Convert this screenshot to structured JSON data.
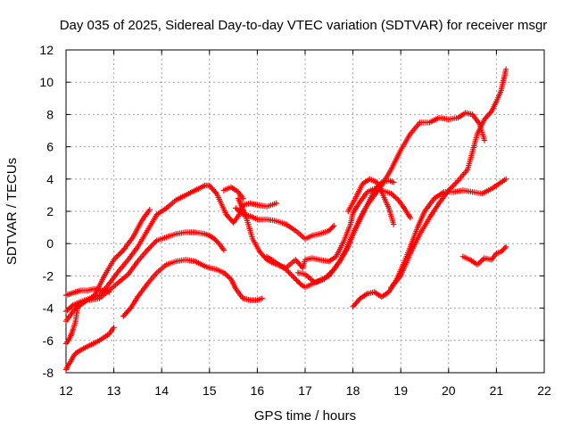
{
  "chart_data": {
    "type": "scatter",
    "title": "Day 035 of 2025, Sidereal Day-to-day VTEC variation (SDTVAR) for receiver msgr",
    "xlabel": "GPS time / hours",
    "ylabel": "SDTVAR / TECUs",
    "xlim": [
      12,
      22
    ],
    "ylim": [
      -8,
      12
    ],
    "x_ticks": [
      "12",
      "13",
      "14",
      "15",
      "16",
      "17",
      "18",
      "19",
      "20",
      "21",
      "22"
    ],
    "y_ticks": [
      "-8",
      "-6",
      "-4",
      "-2",
      "0",
      "2",
      "4",
      "6",
      "8",
      "10",
      "12"
    ],
    "grid": true,
    "marker": "+",
    "color": "#ff0000",
    "series": [
      {
        "x": [
          12.0,
          12.05,
          12.1,
          12.15,
          12.2,
          12.3,
          12.5,
          12.7,
          12.9,
          13.0
        ],
        "y": [
          -7.8,
          -7.5,
          -7.3,
          -7.0,
          -6.8,
          -6.6,
          -6.3,
          -6.0,
          -5.6,
          -5.2
        ]
      },
      {
        "x": [
          12.0,
          12.05,
          12.1,
          12.15,
          12.2,
          12.25
        ],
        "y": [
          -6.2,
          -6.0,
          -5.7,
          -5.3,
          -4.8,
          -3.8
        ]
      },
      {
        "x": [
          12.0,
          12.1,
          12.2,
          12.3,
          12.45,
          12.6,
          12.75,
          12.9
        ],
        "y": [
          -3.2,
          -3.1,
          -3.0,
          -2.9,
          -2.9,
          -2.8,
          -2.9,
          -3.0
        ]
      },
      {
        "x": [
          12.0,
          12.2,
          12.4,
          12.6,
          12.8,
          13.0,
          13.2,
          13.4,
          13.6,
          13.75
        ],
        "y": [
          -4.8,
          -4.0,
          -3.6,
          -3.2,
          -2.0,
          -1.0,
          -0.4,
          0.4,
          1.5,
          2.1
        ]
      },
      {
        "x": [
          12.0,
          12.15,
          12.3,
          12.5,
          12.7,
          12.9,
          13.1,
          13.3,
          13.5,
          13.7,
          13.9,
          14.1,
          14.3,
          14.5,
          14.7,
          14.9,
          15.0,
          15.15,
          15.35,
          15.5,
          15.6,
          15.7,
          15.85,
          16.0,
          16.2,
          16.4
        ],
        "y": [
          -4.2,
          -3.8,
          -3.6,
          -3.4,
          -3.2,
          -2.5,
          -1.7,
          -1.0,
          -0.2,
          0.8,
          1.8,
          2.2,
          2.7,
          3.0,
          3.3,
          3.6,
          3.6,
          3.1,
          1.8,
          1.3,
          1.7,
          2.4,
          2.5,
          2.4,
          2.3,
          2.5
        ]
      },
      {
        "x": [
          12.5,
          12.7,
          12.9,
          13.1,
          13.3,
          13.5,
          13.7,
          13.9,
          14.1,
          14.3,
          14.5,
          14.7,
          14.9,
          15.0,
          15.1,
          15.2,
          15.3
        ],
        "y": [
          -3.5,
          -3.4,
          -2.9,
          -2.4,
          -1.9,
          -1.1,
          -0.4,
          0.2,
          0.4,
          0.6,
          0.7,
          0.7,
          0.6,
          0.5,
          0.3,
          0.0,
          -0.4
        ]
      },
      {
        "x": [
          13.2,
          13.35,
          13.5,
          13.7,
          13.9,
          14.1,
          14.3,
          14.5,
          14.7,
          14.9,
          15.0,
          15.15,
          15.3,
          15.45,
          15.55,
          15.7,
          15.85,
          16.0,
          16.1
        ],
        "y": [
          -4.5,
          -4.0,
          -3.3,
          -2.5,
          -1.8,
          -1.3,
          -1.1,
          -1.0,
          -1.1,
          -1.4,
          -1.5,
          -1.6,
          -1.8,
          -2.2,
          -2.8,
          -3.4,
          -3.5,
          -3.5,
          -3.4
        ]
      },
      {
        "x": [
          15.3,
          15.45,
          15.6,
          15.7
        ],
        "y": [
          3.3,
          3.5,
          3.2,
          2.8
        ]
      },
      {
        "x": [
          15.55,
          15.7,
          15.85,
          16.0,
          16.2,
          16.4,
          16.6,
          16.8,
          17.0,
          17.15,
          17.3,
          17.5,
          17.6
        ],
        "y": [
          2.2,
          1.8,
          1.7,
          1.5,
          1.5,
          1.4,
          1.2,
          0.8,
          0.3,
          0.5,
          0.6,
          0.8,
          1.1
        ]
      },
      {
        "x": [
          15.6,
          15.75,
          15.9,
          16.05,
          16.2,
          16.4,
          16.6,
          16.8,
          16.95,
          17.0,
          17.15,
          17.3,
          17.5,
          17.65,
          17.8,
          17.95,
          18.0,
          18.15,
          18.3,
          18.45,
          18.6,
          18.8,
          18.95,
          19.05,
          19.2
        ],
        "y": [
          2.8,
          1.8,
          0.3,
          -0.5,
          -1.0,
          -1.3,
          -1.5,
          -1.0,
          -1.5,
          -1.0,
          -0.9,
          -1.0,
          -1.1,
          -0.8,
          0.1,
          1.2,
          1.9,
          2.6,
          3.2,
          3.4,
          3.3,
          3.1,
          2.7,
          2.3,
          1.6
        ]
      },
      {
        "x": [
          16.2,
          16.4,
          16.6,
          16.8,
          16.9,
          17.0,
          17.15,
          17.3,
          17.5,
          17.7,
          17.85,
          18.0,
          18.15,
          18.3,
          18.45,
          18.6,
          18.8,
          19.0,
          19.2,
          19.4,
          19.6,
          19.8,
          20.0,
          20.2,
          20.35,
          20.5,
          20.65,
          20.75
        ],
        "y": [
          -0.8,
          -1.2,
          -1.6,
          -2.2,
          -2.5,
          -2.7,
          -2.5,
          -2.3,
          -2.0,
          -1.2,
          -0.4,
          0.6,
          1.6,
          2.4,
          3.0,
          3.6,
          4.6,
          5.8,
          6.8,
          7.5,
          7.5,
          7.8,
          7.7,
          7.8,
          8.1,
          8.0,
          7.4,
          6.4
        ]
      },
      {
        "x": [
          16.85,
          17.0,
          17.2,
          17.4,
          17.6,
          17.75,
          17.9,
          18.0,
          18.15,
          18.3,
          18.45,
          18.6,
          18.75,
          18.85
        ],
        "y": [
          -1.8,
          -1.9,
          -2.4,
          -2.2,
          -1.6,
          -1.0,
          -0.2,
          0.6,
          1.5,
          2.4,
          3.3,
          3.8,
          3.9,
          3.8
        ]
      },
      {
        "x": [
          17.9,
          18.05,
          18.2,
          18.35,
          18.5,
          18.6,
          18.75,
          18.85
        ],
        "y": [
          2.0,
          2.8,
          3.7,
          4.0,
          3.8,
          3.2,
          2.2,
          1.2
        ]
      },
      {
        "x": [
          18.0,
          18.15,
          18.3,
          18.45,
          18.6,
          18.75,
          18.9,
          19.05,
          19.2,
          19.35,
          19.5,
          19.7,
          19.9,
          20.1,
          20.3,
          20.5,
          20.7,
          20.9,
          21.0,
          21.1,
          21.2
        ],
        "y": [
          -3.9,
          -3.4,
          -3.1,
          -3.0,
          -3.3,
          -3.0,
          -2.3,
          -1.3,
          -0.2,
          1.0,
          2.0,
          2.8,
          3.2,
          3.2,
          3.3,
          3.2,
          3.1,
          3.4,
          3.6,
          3.8,
          4.0
        ]
      },
      {
        "x": [
          18.8,
          19.0,
          19.2,
          19.4,
          19.6,
          19.8,
          20.0,
          20.2,
          20.4,
          20.6,
          20.75,
          20.9,
          21.0,
          21.1,
          21.2
        ],
        "y": [
          -2.7,
          -2.0,
          -0.6,
          0.6,
          1.6,
          2.5,
          3.3,
          3.9,
          4.6,
          6.8,
          7.7,
          8.2,
          8.8,
          9.5,
          10.8
        ]
      },
      {
        "x": [
          20.3,
          20.45,
          20.6,
          20.75,
          20.9,
          21.0,
          21.1,
          21.2
        ],
        "y": [
          -0.8,
          -1.0,
          -1.3,
          -0.9,
          -1.0,
          -0.6,
          -0.5,
          -0.2
        ]
      }
    ]
  }
}
